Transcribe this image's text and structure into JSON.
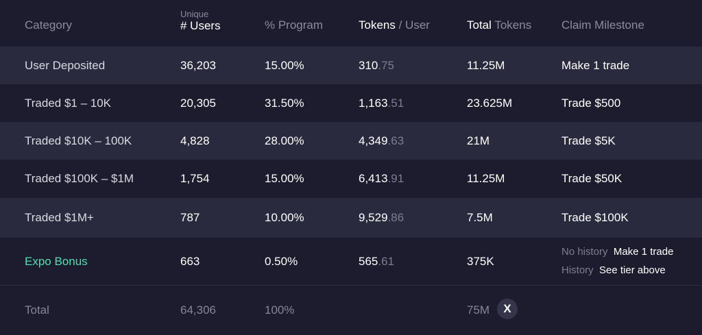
{
  "header": {
    "category": "Category",
    "unique": "Unique",
    "users": "# Users",
    "program": "% Program",
    "tokens_a": "Tokens",
    "tokens_b": " / User",
    "total_a": "Total",
    "total_b": " Tokens",
    "milestone": "Claim Milestone"
  },
  "rows": [
    {
      "category": "User Deposited",
      "users": "36,203",
      "program": "15.00%",
      "tpu_int": "310",
      "tpu_dec": ".75",
      "total": "11.25M",
      "milestone": "Make 1 trade"
    },
    {
      "category": "Traded $1 – 10K",
      "users": "20,305",
      "program": "31.50%",
      "tpu_int": "1,163",
      "tpu_dec": ".51",
      "total": "23.625M",
      "milestone": "Trade $500"
    },
    {
      "category": "Traded $10K – 100K",
      "users": "4,828",
      "program": "28.00%",
      "tpu_int": "4,349",
      "tpu_dec": ".63",
      "total": "21M",
      "milestone": "Trade $5K"
    },
    {
      "category": "Traded $100K – $1M",
      "users": "1,754",
      "program": "15.00%",
      "tpu_int": "6,413",
      "tpu_dec": ".91",
      "total": "11.25M",
      "milestone": "Trade $50K"
    },
    {
      "category": "Traded $1M+",
      "users": "787",
      "program": "10.00%",
      "tpu_int": "9,529",
      "tpu_dec": ".86",
      "total": "7.5M",
      "milestone": "Trade $100K"
    }
  ],
  "bonus": {
    "category": "Expo Bonus",
    "users": "663",
    "program": "0.50%",
    "tpu_int": "565",
    "tpu_dec": ".61",
    "total": "375K",
    "no_history_label": "No history",
    "no_history_value": "Make 1 trade",
    "history_label": "History",
    "history_value": "See tier above"
  },
  "total": {
    "label": "Total",
    "users": "64,306",
    "program": "100%",
    "tokens": "75M",
    "badge": "X"
  },
  "colors": {
    "background": "#1c1c2e",
    "alt_row": "#2a2a3e",
    "accent_green": "#4ee0b0"
  }
}
